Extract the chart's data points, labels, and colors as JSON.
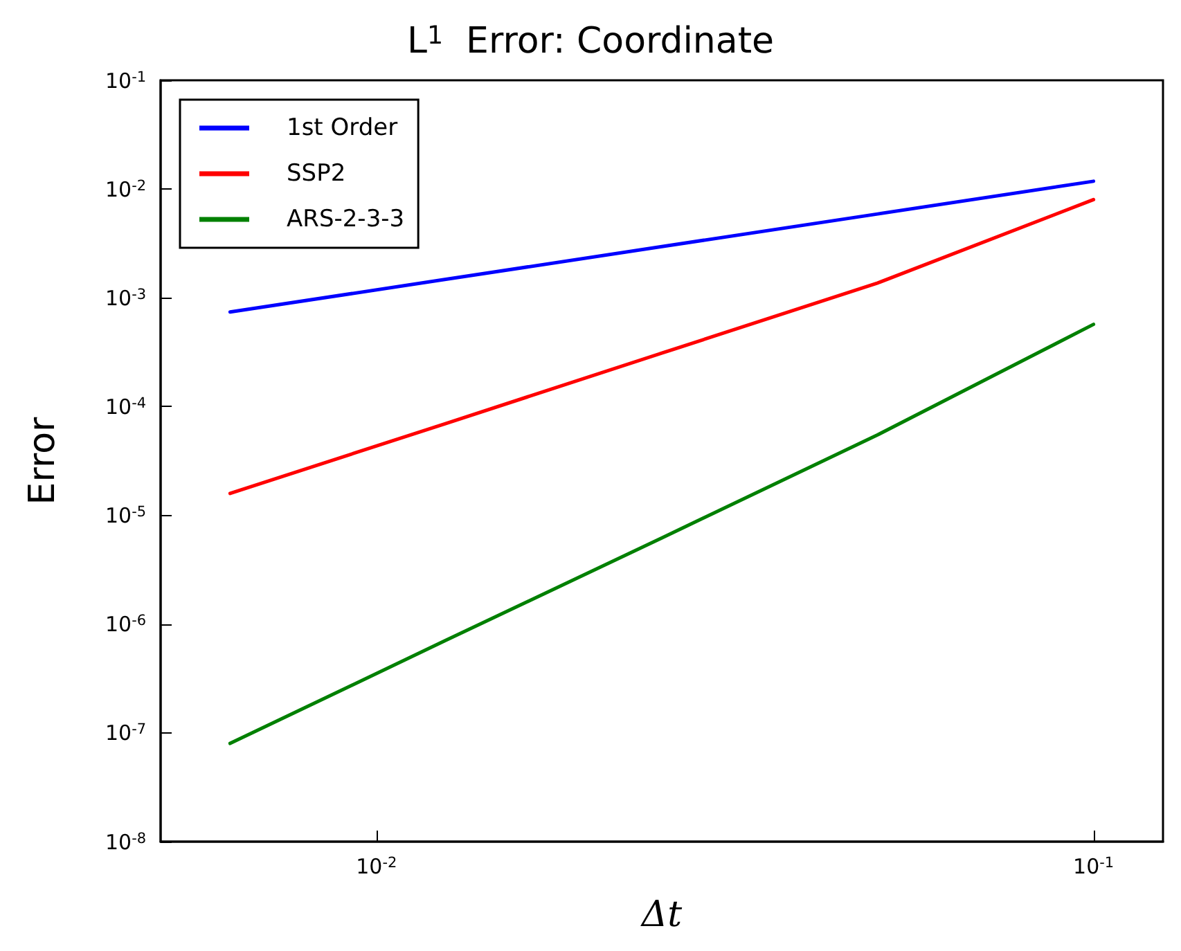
{
  "chart_data": {
    "type": "line",
    "title": "L$^{1}$  Error: Coordinate",
    "xlabel": "Δt",
    "ylabel": "Error",
    "x": [
      0.00625,
      0.0125,
      0.025,
      0.05,
      0.1
    ],
    "series": [
      {
        "name": "1st Order",
        "color": "#0000ff",
        "values": [
          0.00074,
          0.00148,
          0.00296,
          0.0059,
          0.0118
        ]
      },
      {
        "name": "SSP2",
        "color": "#ff0000",
        "values": [
          1.59e-05,
          7e-05,
          0.00031,
          0.00137,
          0.008
        ]
      },
      {
        "name": "ARS-2-3-3",
        "color": "#008000",
        "values": [
          8e-08,
          7.1e-07,
          6.2e-06,
          5.5e-05,
          0.00057
        ]
      }
    ],
    "log": "xy",
    "xlim": [
      0.005,
      0.125
    ],
    "xticks": [
      {
        "value": 0.01,
        "label": "10$^{-2}$"
      },
      {
        "value": 0.1,
        "label": "10$^{-1}$"
      }
    ],
    "ylim": [
      1e-08,
      0.1
    ],
    "yticks": [
      {
        "value": 1e-08,
        "label": "10$^{-8}$"
      },
      {
        "value": 1e-07,
        "label": "10$^{-7}$"
      },
      {
        "value": 1e-06,
        "label": "10$^{-6}$"
      },
      {
        "value": 1e-05,
        "label": "10$^{-5}$"
      },
      {
        "value": 0.0001,
        "label": "10$^{-4}$"
      },
      {
        "value": 0.001,
        "label": "10$^{-3}$"
      },
      {
        "value": 0.01,
        "label": "10$^{-2}$"
      },
      {
        "value": 0.1,
        "label": "10$^{-1}$"
      }
    ],
    "grid": false,
    "legend": "top left",
    "marker": "none",
    "line_style": "solid"
  }
}
